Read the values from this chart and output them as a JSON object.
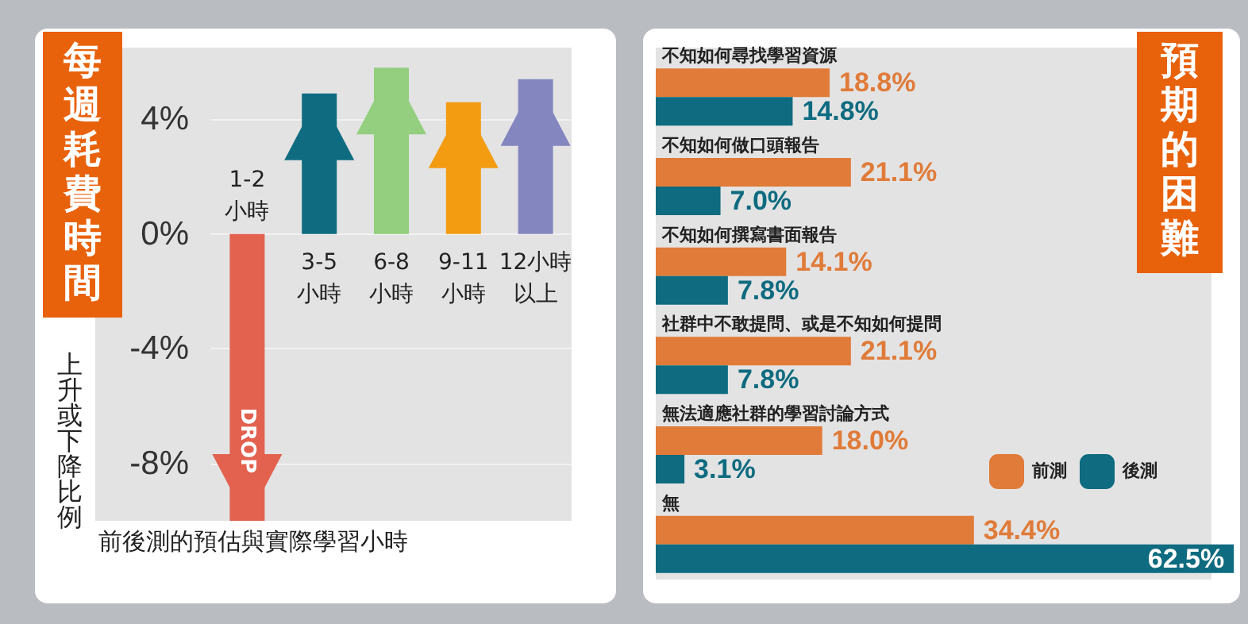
{
  "chart_data": [
    {
      "type": "bar",
      "title": "每週耗費時間",
      "ylabel": "上升或下降比例",
      "xlabel": "前後測的預估與實際學習小時",
      "categories": [
        "1-2小時",
        "3-5小時",
        "6-8小時",
        "9-11小時",
        "12小時以上"
      ],
      "values": [
        -10,
        4.9,
        5.8,
        4.6,
        5.4
      ],
      "colors": [
        "#e2614f",
        "#0f6b80",
        "#93cf7e",
        "#f39c12",
        "#8486c0"
      ],
      "ylim": [
        -10,
        6.5
      ],
      "yticks": [
        {
          "value": 4,
          "label": "4%"
        },
        {
          "value": 0,
          "label": "0%"
        },
        {
          "value": -4,
          "label": "-4%"
        },
        {
          "value": -8,
          "label": "-8%"
        }
      ],
      "grid": "y",
      "annotations": [
        "DROP"
      ]
    },
    {
      "type": "bar",
      "orientation": "horizontal",
      "title": "預期的困難",
      "categories": [
        "不知如何尋找學習資源",
        "不知如何做口頭報告",
        "不知如何撰寫書面報告",
        "社群中不敢提問、或是不知如何提問",
        "無法適應社群的學習討論方式",
        "無"
      ],
      "series": [
        {
          "name": "前測",
          "color": "#e07b39",
          "values": [
            18.8,
            21.1,
            14.1,
            21.1,
            18.0,
            34.4
          ],
          "value_labels": [
            "18.8%",
            "21.1%",
            "14.1%",
            "21.1%",
            "18.0%",
            "34.4%"
          ]
        },
        {
          "name": "後測",
          "color": "#0e6b80",
          "values": [
            14.8,
            7.0,
            7.8,
            7.8,
            3.1,
            62.5
          ],
          "value_labels": [
            "14.8%",
            "7.0%",
            "7.8%",
            "7.8%",
            "3.1%",
            "62.5%"
          ]
        }
      ],
      "xlim": [
        0,
        63
      ],
      "legend": "bottom right"
    }
  ]
}
